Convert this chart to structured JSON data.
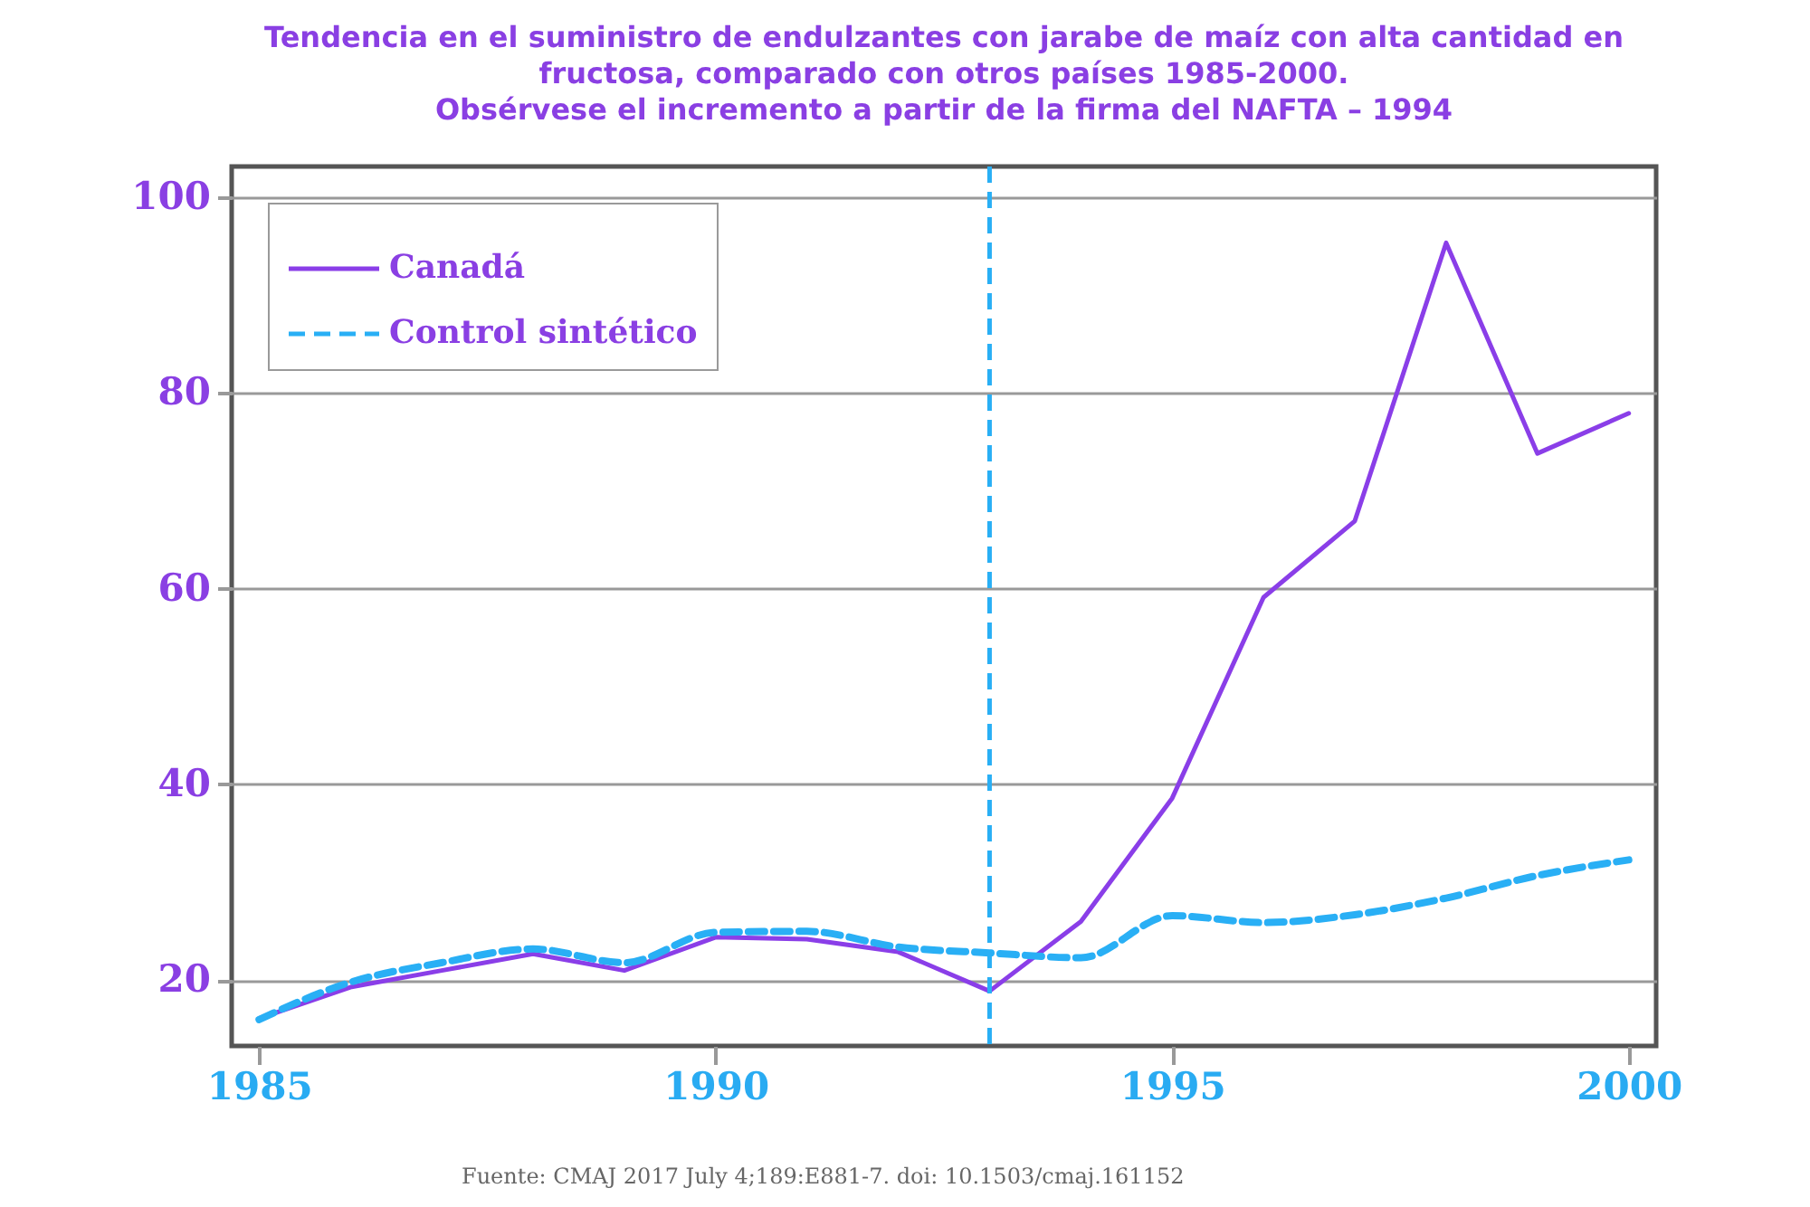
{
  "chart_data": {
    "type": "line",
    "title": "Tendencia en el suministro de endulzantes con jarabe de maíz con alta cantidad en\nfructosa, comparado con otros países 1985-2000.\nObsérvese el incremento a partir de la firma del NAFTA – 1994",
    "x": [
      1985,
      1986,
      1987,
      1988,
      1989,
      1990,
      1991,
      1992,
      1993,
      1994,
      1995,
      1996,
      1997,
      1998,
      1999,
      2000
    ],
    "series": [
      {
        "name": "Canadá",
        "color": "#8a3ee8",
        "line_style": "solid",
        "values": [
          16.1,
          19.3,
          21.0,
          22.7,
          21.0,
          24.4,
          24.2,
          22.9,
          18.9,
          26.0,
          38.6,
          59.1,
          66.9,
          95.3,
          73.8,
          77.9
        ]
      },
      {
        "name": "Control sintético",
        "color": "#29aff5",
        "line_style": "dashed",
        "values": [
          16.0,
          19.8,
          21.8,
          23.2,
          21.8,
          24.9,
          25.0,
          23.4,
          22.8,
          22.3,
          26.6,
          25.9,
          26.7,
          28.4,
          30.7,
          32.3
        ]
      }
    ],
    "xlim": [
      1984.7,
      2000.3
    ],
    "ylim": [
      13.3,
      103.1
    ],
    "xticks": [
      1985,
      1990,
      1995,
      2000
    ],
    "yticks": [
      20,
      40,
      60,
      80,
      100
    ],
    "ref_lines": [
      {
        "axis": "x",
        "value": 1993,
        "color": "#29aff5",
        "line_style": "dashed"
      }
    ],
    "grid": "y",
    "legend": "top left",
    "annotations": [
      "Fuente: CMAJ 2017 July 4;189:E881-7.  doi: 10.1503/cmaj.161152"
    ]
  }
}
